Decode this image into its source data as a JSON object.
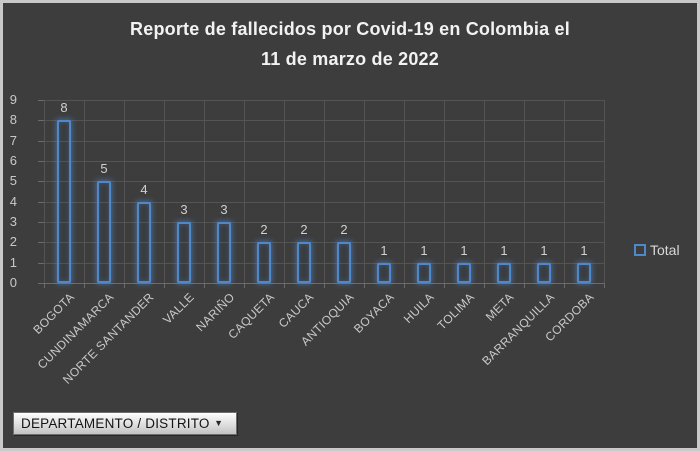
{
  "window": {
    "background": "#3d3d3d",
    "frame_border": "#c9c9c9"
  },
  "title": {
    "line1": "Reporte de fallecidos por Covid-19 en Colombia el",
    "line2": "11 de marzo de 2022"
  },
  "legend": {
    "label": "Total",
    "swatch_icon": "hollow-blue-square",
    "swatch_color": "#4f88c8",
    "position": "right"
  },
  "filter_button": {
    "label": "DEPARTAMENTO / DISTRITO",
    "dropdown_icon": "▼"
  },
  "colors": {
    "bar_border": "#4f88c8",
    "bar_glow": "rgba(86,148,222,0.55)",
    "gridline": "#545454",
    "axis_text": "#c8c8c8",
    "data_label_text": "#d0d0d0",
    "title_text": "#f2f2f2"
  },
  "chart_data": {
    "type": "bar",
    "title": "Reporte de fallecidos por Covid-19 en Colombia el 11 de marzo de 2022",
    "categories": [
      "BOGOTA",
      "CUNDINAMARCA",
      "NORTE SANTANDER",
      "VALLE",
      "NARIÑO",
      "CAQUETA",
      "CAUCA",
      "ANTIOQUIA",
      "BOYACA",
      "HUILA",
      "TOLIMA",
      "META",
      "BARRANQUILLA",
      "CORDOBA"
    ],
    "values": [
      8,
      5,
      4,
      3,
      3,
      2,
      2,
      2,
      1,
      1,
      1,
      1,
      1,
      1
    ],
    "series": [
      {
        "name": "Total",
        "values": [
          8,
          5,
          4,
          3,
          3,
          2,
          2,
          2,
          1,
          1,
          1,
          1,
          1,
          1
        ]
      }
    ],
    "xlabel": "",
    "ylabel": "",
    "ylim": [
      0,
      9
    ],
    "yticks": [
      0,
      1,
      2,
      3,
      4,
      5,
      6,
      7,
      8,
      9
    ],
    "grid": true,
    "data_labels": true,
    "legend_position": "right"
  }
}
